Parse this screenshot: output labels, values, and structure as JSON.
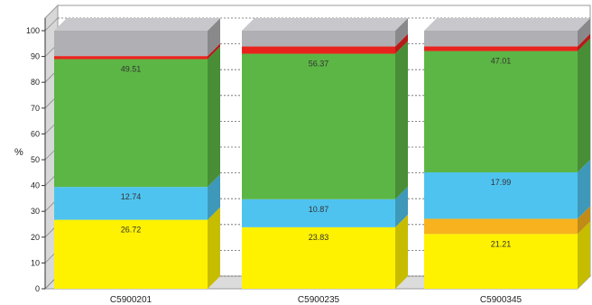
{
  "chart_data": {
    "type": "bar",
    "stacked": true,
    "three_d": true,
    "ylabel": "%",
    "ylim": [
      0,
      100
    ],
    "yticks": [
      0,
      10,
      20,
      30,
      40,
      50,
      60,
      70,
      80,
      90,
      100
    ],
    "grid": true,
    "categories": [
      "C5900201",
      "C5900235",
      "C5900345"
    ],
    "series": [
      {
        "color": "#fff200",
        "values": [
          26.72,
          23.83,
          21.21
        ],
        "labels": [
          "26.72",
          "23.83",
          "21.21"
        ]
      },
      {
        "color": "#f7b21d",
        "values": [
          0.0,
          0.0,
          5.9
        ],
        "labels": [
          "",
          "",
          ""
        ]
      },
      {
        "color": "#4fc3ef",
        "values": [
          12.74,
          10.87,
          17.99
        ],
        "labels": [
          "12.74",
          "10.87",
          "17.99"
        ]
      },
      {
        "color": "#5cb645",
        "values": [
          49.51,
          56.37,
          47.01
        ],
        "labels": [
          "49.51",
          "56.37",
          "47.01"
        ]
      },
      {
        "color": "#e8231d",
        "values": [
          1.2,
          2.8,
          1.8
        ],
        "labels": [
          "",
          "",
          ""
        ]
      },
      {
        "color": "#b0b0b4",
        "values": [
          9.83,
          6.13,
          6.09
        ],
        "labels": [
          "",
          "",
          ""
        ]
      }
    ]
  }
}
